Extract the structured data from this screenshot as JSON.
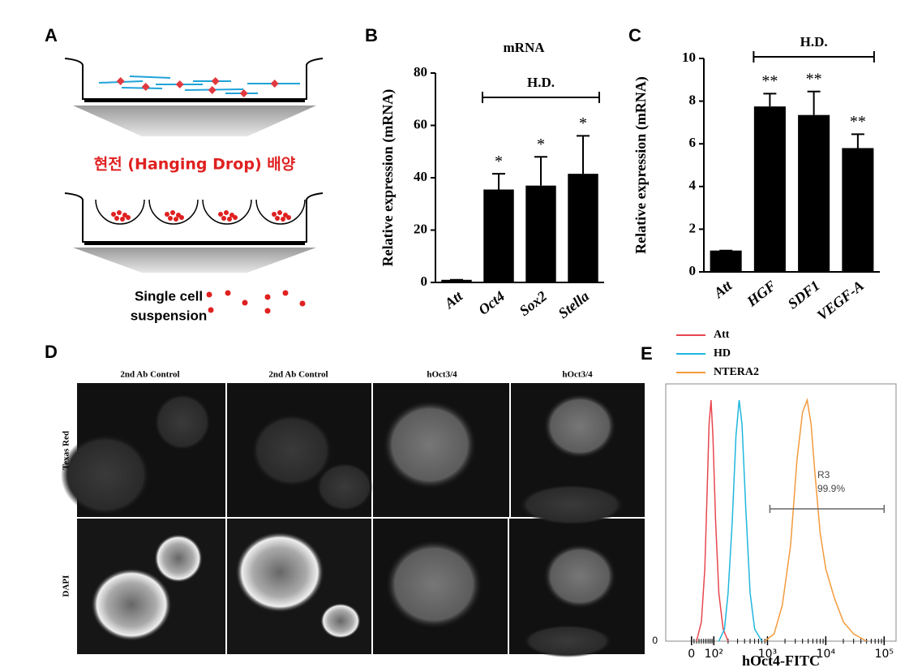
{
  "panel_labels": [
    "A",
    "B",
    "C",
    "D",
    "E"
  ],
  "panel_a": {
    "culture_label": "현전 (Hanging Drop) 배양",
    "result_label": [
      "Single cell",
      "suspension"
    ]
  },
  "panel_d": {
    "columns": [
      "2nd Ab Control",
      "2nd Ab Control",
      "hOct3/4",
      "hOct3/4"
    ],
    "rows": [
      "Texas Red",
      "DAPI"
    ]
  },
  "chart_data": [
    {
      "type": "bar",
      "title": "mRNA",
      "y_label": "Relative expression (mRNA)",
      "categories": [
        "Att",
        "Oct4",
        "Sox2",
        "Stella"
      ],
      "values": [
        1,
        35.5,
        37,
        41.5
      ],
      "errors": [
        0,
        6,
        11,
        14.5
      ],
      "significance": [
        null,
        "*",
        "*",
        "*"
      ],
      "bracket_label": "H.D.",
      "color": "#000000",
      "ylim": [
        0,
        80
      ],
      "yticks": [
        0,
        20,
        40,
        60,
        80
      ]
    },
    {
      "type": "bar",
      "y_label": "Relative expression (mRNA)",
      "categories": [
        "Att",
        "HGF",
        "SDF1",
        "VEGF-A"
      ],
      "values": [
        1,
        7.75,
        7.35,
        5.8
      ],
      "errors": [
        0,
        0.6,
        1.1,
        0.65
      ],
      "significance": [
        null,
        "**",
        "**",
        "**"
      ],
      "bracket_label": "H.D.",
      "color": "#000000",
      "ylim": [
        0,
        10
      ],
      "yticks": [
        0,
        2,
        4,
        6,
        8,
        10
      ]
    },
    {
      "type": "line",
      "x_label": "hOct4-FITC",
      "xscale": "asinh",
      "legend": "top-left",
      "series": [
        {
          "name": "Att",
          "color": "#e8474f",
          "x": [
            20,
            40,
            55,
            65,
            75,
            85,
            95,
            110,
            130,
            160,
            200
          ],
          "values": [
            0,
            8,
            30,
            60,
            90,
            100,
            85,
            50,
            20,
            5,
            0
          ]
        },
        {
          "name": "HD",
          "color": "#1fb7dd",
          "x": [
            130,
            170,
            200,
            240,
            280,
            320,
            360,
            420,
            500,
            600,
            800
          ],
          "values": [
            0,
            5,
            20,
            50,
            85,
            100,
            90,
            55,
            20,
            5,
            0
          ]
        },
        {
          "name": "NTERA2",
          "color": "#f39a3c",
          "x": [
            900,
            1300,
            1800,
            2500,
            3200,
            4000,
            4800,
            5600,
            6500,
            8000,
            10000,
            14000,
            20000,
            30000,
            50000
          ],
          "values": [
            0,
            3,
            15,
            40,
            75,
            95,
            100,
            90,
            70,
            45,
            30,
            18,
            8,
            3,
            0
          ]
        }
      ],
      "gate": {
        "label": "R3",
        "percent": "99.9%",
        "range": [
          1100,
          100000
        ]
      },
      "xlim": [
        -120,
        160000
      ],
      "xticks": [
        0,
        {
          "value": 100,
          "label": "10²"
        },
        {
          "value": 1000,
          "label": "10³"
        },
        {
          "value": 10000,
          "label": "10⁴"
        },
        {
          "value": 100000,
          "label": "10⁵"
        }
      ],
      "ylim": [
        0,
        100
      ],
      "yticks": [
        0
      ]
    }
  ]
}
